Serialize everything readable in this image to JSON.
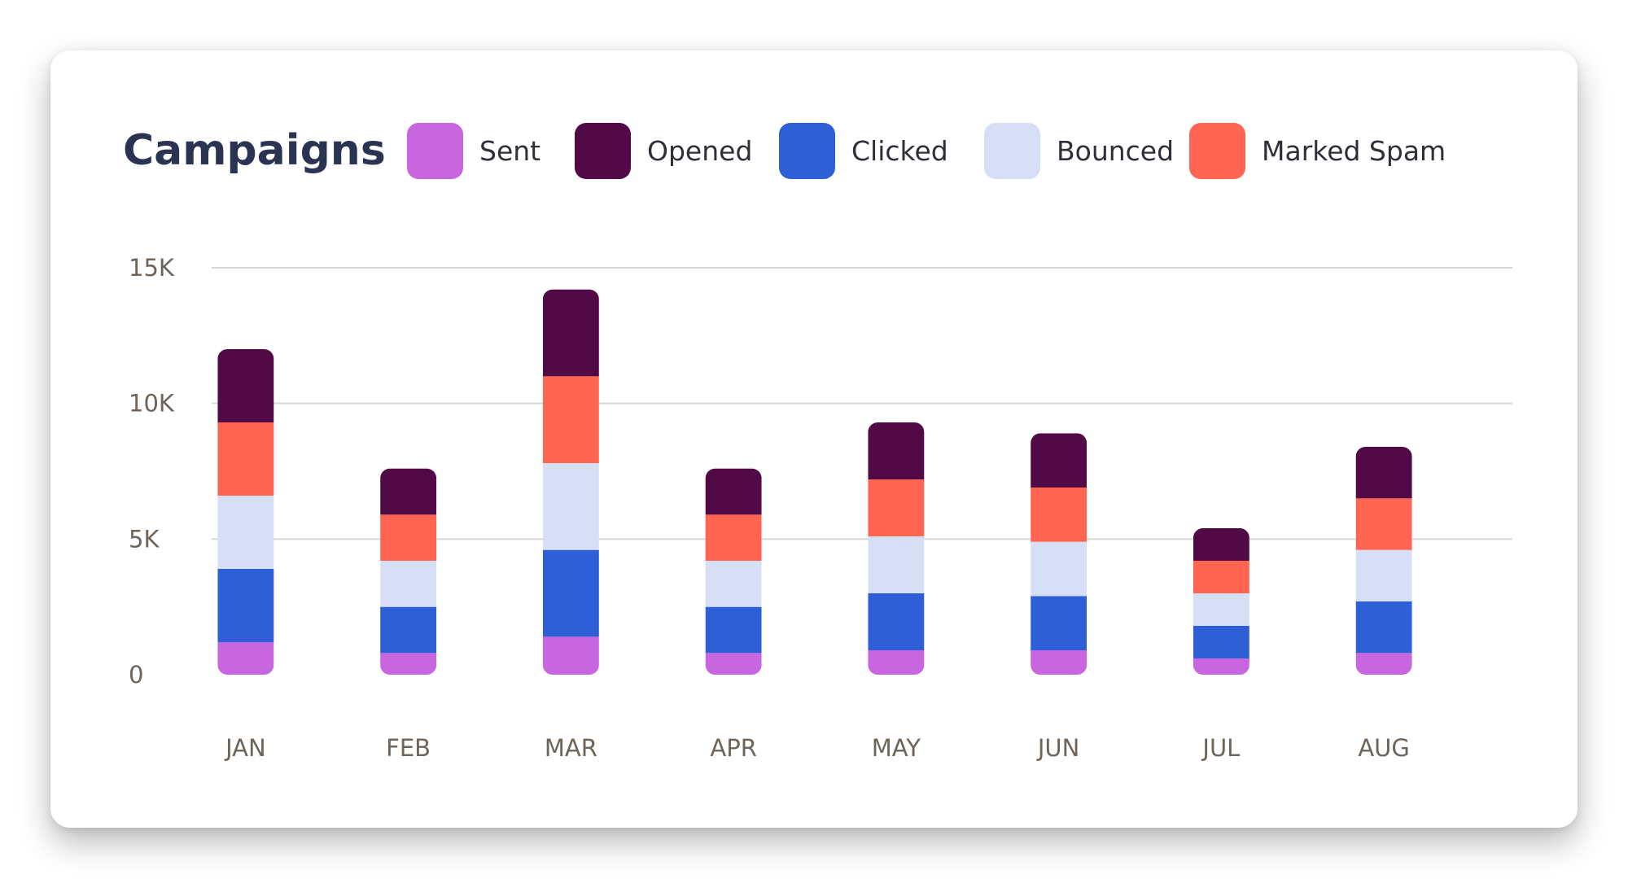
{
  "chart_data": {
    "type": "bar",
    "stacked": true,
    "title": "Campaigns",
    "categories": [
      "JAN",
      "FEB",
      "MAR",
      "APR",
      "MAY",
      "JUN",
      "JUL",
      "AUG"
    ],
    "y_ticks": [
      "0",
      "5K",
      "10K",
      "15K"
    ],
    "ylim": [
      0,
      15000
    ],
    "grid": true,
    "legend_position": "top",
    "series": [
      {
        "name": "Sent",
        "color": "#c766de",
        "values": [
          1200,
          800,
          1400,
          800,
          900,
          900,
          600,
          800
        ]
      },
      {
        "name": "Clicked",
        "color": "#2f5fd7",
        "values": [
          2700,
          1700,
          3200,
          1700,
          2100,
          2000,
          1200,
          1900
        ]
      },
      {
        "name": "Bounced",
        "color": "#d6dff6",
        "values": [
          2700,
          1700,
          3200,
          1700,
          2100,
          2000,
          1200,
          1900
        ]
      },
      {
        "name": "Marked Spam",
        "color": "#ff6550",
        "values": [
          2700,
          1700,
          3200,
          1700,
          2100,
          2000,
          1200,
          1900
        ]
      },
      {
        "name": "Opened",
        "color": "#520a47",
        "values": [
          2700,
          1700,
          3200,
          1700,
          2100,
          2000,
          1200,
          1900
        ]
      }
    ],
    "legend_order": [
      "Sent",
      "Opened",
      "Clicked",
      "Bounced",
      "Marked Spam"
    ]
  }
}
